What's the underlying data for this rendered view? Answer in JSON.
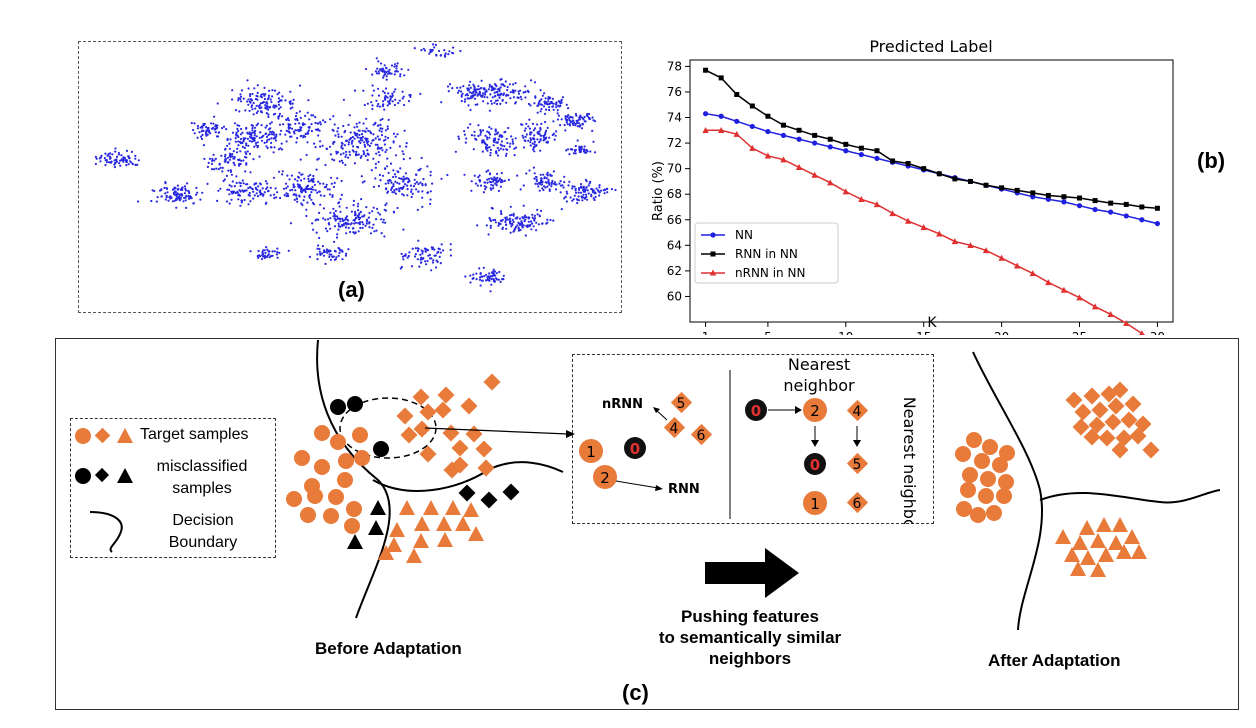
{
  "panel_a": {
    "label": "(a)"
  },
  "panel_b": {
    "label": "(b)"
  },
  "panel_c": {
    "label": "(c)"
  },
  "chart_data": {
    "type": "line",
    "title": "Predicted Label",
    "xlabel": "K",
    "ylabel": "Ratio (%)",
    "xlim": [
      0,
      31
    ],
    "ylim": [
      58,
      78.5
    ],
    "xticks": [
      1,
      5,
      10,
      15,
      20,
      25,
      30
    ],
    "yticks": [
      60,
      62,
      64,
      66,
      68,
      70,
      72,
      74,
      76,
      78
    ],
    "legend_position": "bottom-left",
    "grid": false,
    "x": [
      1,
      2,
      3,
      4,
      5,
      6,
      7,
      8,
      9,
      10,
      11,
      12,
      13,
      14,
      15,
      16,
      17,
      18,
      19,
      20,
      21,
      22,
      23,
      24,
      25,
      26,
      27,
      28,
      29,
      30
    ],
    "series": [
      {
        "name": "NN",
        "color": "#1f1fe0",
        "marker": "circle",
        "values": [
          74.3,
          74.1,
          73.7,
          73.3,
          72.9,
          72.6,
          72.3,
          72.0,
          71.7,
          71.4,
          71.1,
          70.8,
          70.5,
          70.2,
          69.9,
          69.6,
          69.3,
          69.0,
          68.7,
          68.4,
          68.1,
          67.8,
          67.6,
          67.4,
          67.1,
          66.8,
          66.6,
          66.3,
          66.0,
          65.7
        ]
      },
      {
        "name": "RNN in NN",
        "color": "#000000",
        "marker": "square",
        "values": [
          77.7,
          77.1,
          75.8,
          74.9,
          74.1,
          73.4,
          73.0,
          72.6,
          72.3,
          71.9,
          71.6,
          71.4,
          70.6,
          70.4,
          70.0,
          69.6,
          69.2,
          69.0,
          68.7,
          68.5,
          68.3,
          68.1,
          67.9,
          67.8,
          67.7,
          67.5,
          67.3,
          67.2,
          67.0,
          66.9
        ]
      },
      {
        "name": "nRNN in NN",
        "color": "#e03030",
        "marker": "triangle",
        "values": [
          73.0,
          73.0,
          72.7,
          71.6,
          71.0,
          70.7,
          70.1,
          69.5,
          68.9,
          68.2,
          67.6,
          67.2,
          66.5,
          65.9,
          65.4,
          64.9,
          64.3,
          64.0,
          63.6,
          63.0,
          62.4,
          61.8,
          61.1,
          60.5,
          59.9,
          59.2,
          58.6,
          57.9,
          57.1,
          56.3
        ]
      }
    ]
  },
  "legend_c": {
    "target_samples": "Target samples",
    "misclassified_line1": "misclassified",
    "misclassified_line2": "samples",
    "decision_line1": "Decision",
    "decision_line2": "Boundary"
  },
  "inset": {
    "nrnn_label": "nRNN",
    "rnn_label": "RNN",
    "nearest_neighbor_line1": "Nearest",
    "nearest_neighbor_line2": "neighbor",
    "nearest_neighbor_vertical": "Nearest neighbor",
    "node_1": "1",
    "node_2": "2",
    "node_0": "0",
    "node_4": "4",
    "node_5": "5",
    "node_6": "6"
  },
  "captions": {
    "before": "Before Adaptation",
    "after": "After Adaptation",
    "push_line1": "Pushing features",
    "push_line2": "to semantically similar",
    "push_line3": "neighbors"
  },
  "colors": {
    "orange": "#e87a3a",
    "blue_dots": "#2828e0",
    "black": "#000000"
  }
}
